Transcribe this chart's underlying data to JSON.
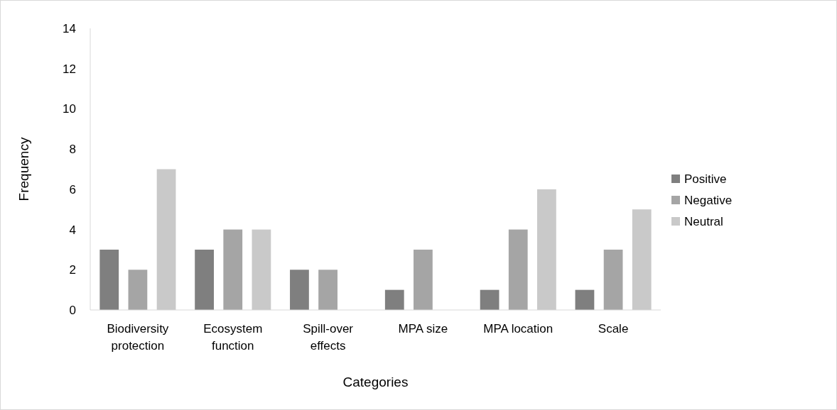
{
  "chart_data": {
    "type": "bar",
    "xlabel": "Categories",
    "ylabel": "Frequency",
    "categories": [
      "Biodiversity protection",
      "Ecosystem function",
      "Spill-over effects",
      "MPA size",
      "MPA location",
      "Scale"
    ],
    "series": [
      {
        "name": "Positive",
        "color": "#7f7f7f",
        "values": [
          3,
          3,
          2,
          1,
          1,
          1
        ]
      },
      {
        "name": "Negative",
        "color": "#a5a5a5",
        "values": [
          2,
          4,
          2,
          3,
          4,
          3
        ]
      },
      {
        "name": "Neutral",
        "color": "#c9c9c9",
        "values": [
          7,
          4,
          0,
          0,
          6,
          5
        ]
      }
    ],
    "ylim": [
      0,
      14
    ],
    "yticks": [
      0,
      2,
      4,
      6,
      8,
      10,
      12,
      14
    ],
    "legend": "right"
  }
}
